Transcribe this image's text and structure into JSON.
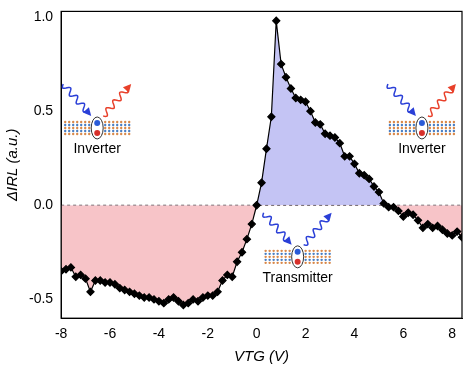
{
  "chart_data": {
    "type": "line",
    "x_label": "VTG (V)",
    "y_label": "ΔIRL (a.u.)",
    "annotations": [
      "Inverter",
      "Transmitter",
      "Inverter"
    ],
    "xlim": [
      -8,
      8.4
    ],
    "xticks": [
      -8,
      -6,
      -4,
      -2,
      0,
      2,
      4,
      6,
      8
    ],
    "ylim": [
      -0.6,
      1.03
    ],
    "yticks": [
      -0.5,
      {
        "value": 0,
        "label": "0.0"
      },
      0.5,
      {
        "value": 1,
        "label": "1.0"
      }
    ],
    "grid": false,
    "series": [
      {
        "name": "ΔIRL",
        "color": "#000000",
        "marker": "diamond",
        "line_style": "solid",
        "x": [
          -8,
          -7.8,
          -7.6,
          -7.4,
          -7.2,
          -7,
          -6.8,
          -6.6,
          -6.4,
          -6.2,
          -6,
          -5.8,
          -5.6,
          -5.4,
          -5.2,
          -5,
          -4.8,
          -4.6,
          -4.4,
          -4.2,
          -4,
          -3.8,
          -3.6,
          -3.4,
          -3.2,
          -3,
          -2.8,
          -2.6,
          -2.4,
          -2.2,
          -2,
          -1.8,
          -1.6,
          -1.4,
          -1.2,
          -1,
          -0.8,
          -0.6,
          -0.4,
          -0.2,
          0,
          0.2,
          0.4,
          0.6,
          0.8,
          1,
          1.2,
          1.4,
          1.6,
          1.8,
          2,
          2.2,
          2.4,
          2.6,
          2.8,
          3,
          3.2,
          3.4,
          3.6,
          3.8,
          4,
          4.2,
          4.4,
          4.6,
          4.8,
          5,
          5.2,
          5.4,
          5.6,
          5.8,
          6,
          6.2,
          6.4,
          6.6,
          6.8,
          7,
          7.2,
          7.4,
          7.6,
          7.8,
          8,
          8.2,
          8.4
        ],
        "values": [
          -0.35,
          -0.34,
          -0.33,
          -0.38,
          -0.37,
          -0.39,
          -0.46,
          -0.4,
          -0.4,
          -0.41,
          -0.41,
          -0.42,
          -0.44,
          -0.45,
          -0.46,
          -0.47,
          -0.48,
          -0.49,
          -0.49,
          -0.5,
          -0.51,
          -0.52,
          -0.5,
          -0.49,
          -0.51,
          -0.53,
          -0.52,
          -0.5,
          -0.51,
          -0.49,
          -0.48,
          -0.48,
          -0.46,
          -0.4,
          -0.37,
          -0.38,
          -0.3,
          -0.25,
          -0.18,
          -0.1,
          0.0,
          0.12,
          0.3,
          0.47,
          0.98,
          0.75,
          0.68,
          0.62,
          0.57,
          0.56,
          0.55,
          0.5,
          0.44,
          0.43,
          0.38,
          0.37,
          0.36,
          0.33,
          0.26,
          0.26,
          0.22,
          0.17,
          0.16,
          0.14,
          0.1,
          0.07,
          0.01,
          -0.01,
          -0.01,
          -0.03,
          -0.06,
          -0.04,
          -0.05,
          -0.08,
          -0.12,
          -0.1,
          -0.12,
          -0.11,
          -0.13,
          -0.15,
          -0.16,
          -0.14,
          -0.17
        ]
      }
    ]
  }
}
